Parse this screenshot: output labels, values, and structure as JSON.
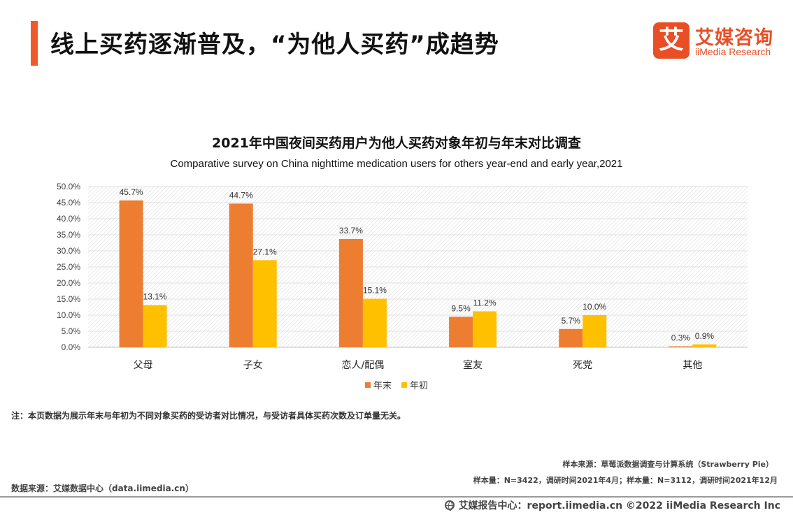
{
  "header": {
    "title": "线上买药逐渐普及，“为他人买药”成趋势",
    "logo": {
      "mark": "艾",
      "name_cn": "艾媒咨询",
      "name_en": "iiMedia Research"
    }
  },
  "chart_data": {
    "type": "bar",
    "title": "2021年中国夜间买药用户为他人买药对象年初与年末对比调查",
    "subtitle": "Comparative survey on China nighttime medication users for others year-end and early year,2021",
    "categories": [
      "父母",
      "子女",
      "恋人/配偶",
      "室友",
      "死党",
      "其他"
    ],
    "series": [
      {
        "name": "年末",
        "color": "#ed7d31",
        "values": [
          45.7,
          44.7,
          33.7,
          9.5,
          5.7,
          0.3
        ]
      },
      {
        "name": "年初",
        "color": "#ffc000",
        "values": [
          13.1,
          27.1,
          15.1,
          11.2,
          10.0,
          0.9
        ]
      }
    ],
    "ylim": [
      0,
      50
    ],
    "yticks": [
      "0.0%",
      "5.0%",
      "10.0%",
      "15.0%",
      "20.0%",
      "25.0%",
      "30.0%",
      "35.0%",
      "40.0%",
      "45.0%",
      "50.0%"
    ],
    "value_suffix": "%",
    "legend": "bottom",
    "grid": true
  },
  "notes": {
    "note": "注：本页数据为展示年末与年初为不同对象买药的受访者对比情况，与受访者具体买药次数及订单量无关。",
    "sample_source": "样本来源：草莓派数据调查与计算系统（Strawberry Pie）",
    "sample_size": "样本量：N=3422，调研时间2021年4月；样本量：N=3112，调研时间2021年12月",
    "data_source": "数据来源：艾媒数据中心（data.iimedia.cn）"
  },
  "footer": {
    "text": "艾媒报告中心：report.iimedia.cn  ©2022  iiMedia Research Inc"
  }
}
